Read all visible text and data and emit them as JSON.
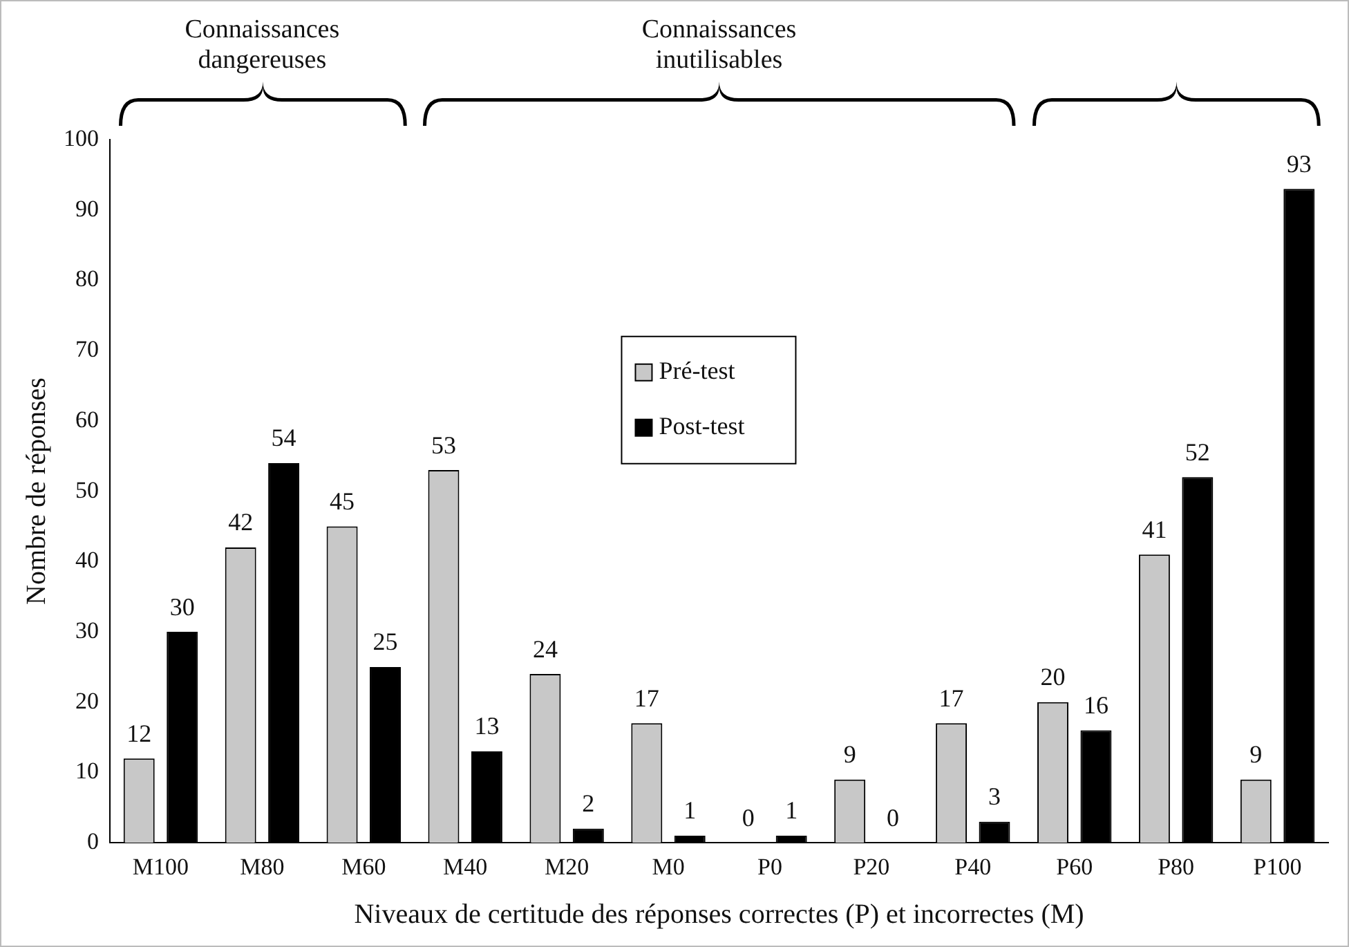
{
  "chart_data": {
    "type": "bar",
    "xlabel": "Niveaux de certitude des réponses correctes (P) et incorrectes (M)",
    "ylabel": "Nombre de réponses",
    "categories": [
      "M100",
      "M80",
      "M60",
      "M40",
      "M20",
      "M0",
      "P0",
      "P20",
      "P40",
      "P60",
      "P80",
      "P100"
    ],
    "series": [
      {
        "name": "Pré-test",
        "color": "#c8c8c8",
        "values": [
          12,
          42,
          45,
          53,
          24,
          17,
          0,
          9,
          17,
          20,
          41,
          9
        ]
      },
      {
        "name": "Post-test",
        "color": "#000000",
        "values": [
          30,
          54,
          25,
          13,
          2,
          1,
          1,
          0,
          3,
          16,
          52,
          93
        ]
      }
    ],
    "ylim": [
      0,
      100
    ],
    "yticks": [
      0,
      10,
      20,
      30,
      40,
      50,
      60,
      70,
      80,
      90,
      100
    ],
    "grid": false,
    "legend": "center",
    "data_labels": true,
    "annotations": [
      "Connaissances dangereuses",
      "Connaissances inutilisables"
    ]
  }
}
